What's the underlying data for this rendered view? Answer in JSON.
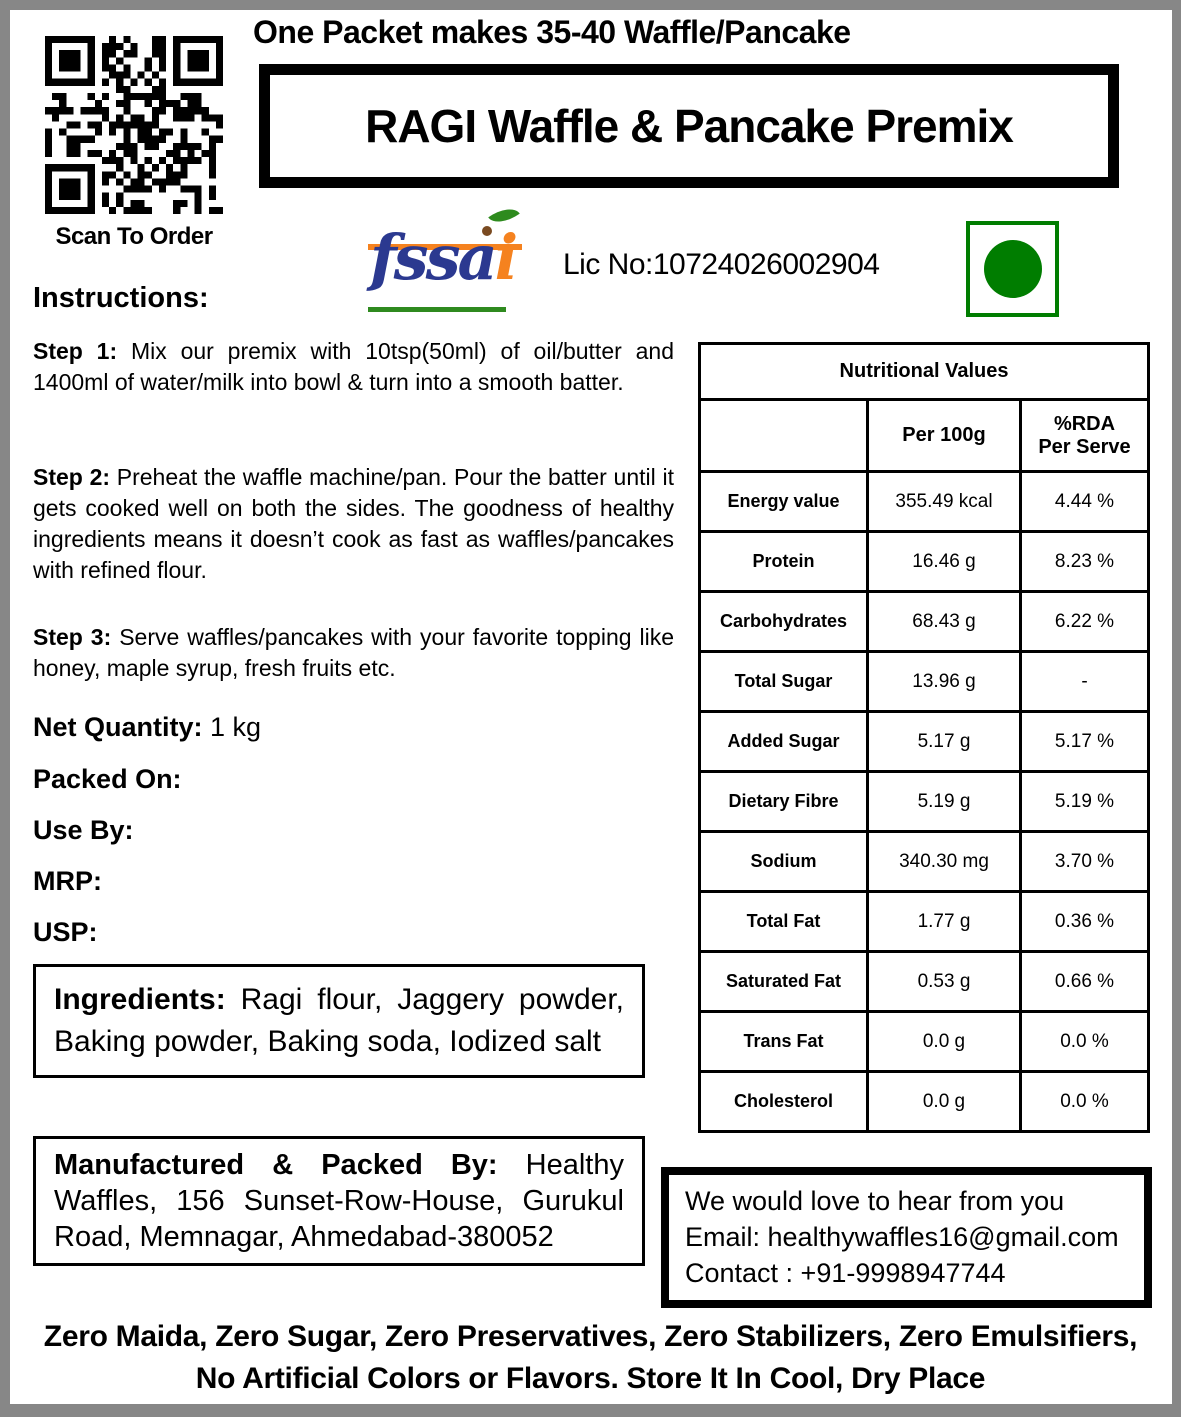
{
  "header": {
    "qr_caption": "Scan To Order",
    "top_note": "One Packet makes 35-40 Waffle/Pancake",
    "title": "RAGI Waffle & Pancake Premix",
    "fssai_wordmark_main": "fssa",
    "fssai_wordmark_i": "i",
    "license_number": "Lic No:10724026002904"
  },
  "instructions": {
    "heading": "Instructions:",
    "steps": [
      {
        "label": "Step 1:",
        "text": " Mix our premix with 10tsp(50ml) of oil/butter and 1400ml of water/milk into bowl & turn into a smooth batter."
      },
      {
        "label": "Step 2:",
        "text": " Preheat the waffle machine/pan. Pour the batter until it gets cooked well on both the sides. The goodness of healthy ingredients means it doesn’t cook as fast as waffles/pancakes with refined flour."
      },
      {
        "label": "Step 3:",
        "text": " Serve waffles/pancakes with your favorite topping like honey, maple syrup, fresh fruits etc."
      }
    ]
  },
  "details": {
    "net_quantity_label": "Net Quantity:",
    "net_quantity_value": " 1 kg",
    "packed_on_label": "Packed On:",
    "packed_on_value": "",
    "use_by_label": "Use By:",
    "use_by_value": "",
    "mrp_label": "MRP:",
    "mrp_value": "",
    "usp_label": "USP:",
    "usp_value": ""
  },
  "ingredients": {
    "label": "Ingredients:",
    "text": " Ragi flour, Jaggery powder, Baking powder, Baking soda, Iodized salt"
  },
  "manufacturer": {
    "label": "Manufactured & Packed By:",
    "text": " Healthy Waffles, 156 Sunset-Row-House, Gurukul Road, Memnagar, Ahmedabad-380052"
  },
  "nutrition": {
    "title": "Nutritional Values",
    "col_per": "Per 100g",
    "col_rda": "%RDA\nPer Serve",
    "rows": [
      {
        "nutrient": "Energy value",
        "per_100g": "355.49 kcal",
        "rda_per_serve": "4.44 %"
      },
      {
        "nutrient": "Protein",
        "per_100g": "16.46 g",
        "rda_per_serve": "8.23 %"
      },
      {
        "nutrient": "Carbohydrates",
        "per_100g": "68.43 g",
        "rda_per_serve": "6.22 %"
      },
      {
        "nutrient": "Total Sugar",
        "per_100g": "13.96 g",
        "rda_per_serve": "-"
      },
      {
        "nutrient": "Added Sugar",
        "per_100g": "5.17 g",
        "rda_per_serve": "5.17 %"
      },
      {
        "nutrient": "Dietary Fibre",
        "per_100g": "5.19 g",
        "rda_per_serve": "5.19 %"
      },
      {
        "nutrient": "Sodium",
        "per_100g": "340.30 mg",
        "rda_per_serve": "3.70 %"
      },
      {
        "nutrient": "Total Fat",
        "per_100g": "1.77 g",
        "rda_per_serve": "0.36 %"
      },
      {
        "nutrient": "Saturated Fat",
        "per_100g": "0.53 g",
        "rda_per_serve": "0.66 %"
      },
      {
        "nutrient": "Trans Fat",
        "per_100g": "0.0 g",
        "rda_per_serve": "0.0 %"
      },
      {
        "nutrient": "Cholesterol",
        "per_100g": "0.0 g",
        "rda_per_serve": "0.0 %"
      }
    ]
  },
  "contact": {
    "line1": "We would love to hear from you",
    "line2": "Email: healthywaffles16@gmail.com",
    "line3": "Contact : +91-9998947744"
  },
  "footer": {
    "text": "Zero Maida, Zero Sugar, Zero Preservatives, Zero Stabilizers, Zero Emulsifiers, No Artificial Colors or Flavors. Store It In Cool, Dry Place"
  },
  "colors": {
    "frame_gray": "#878787",
    "fssai_navy": "#2B3990",
    "fssai_orange": "#F5821F",
    "veg_green": "#007D00"
  }
}
